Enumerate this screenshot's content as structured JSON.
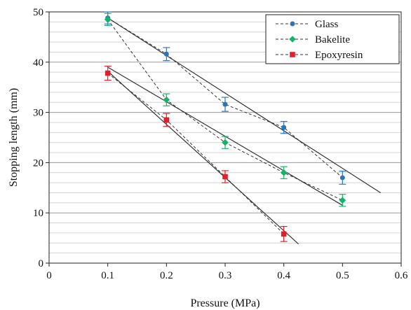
{
  "chart_data": {
    "type": "scatter",
    "title": "",
    "xlabel": "Pressure (MPa)",
    "ylabel": "Stopping length (mm)",
    "xlim": [
      0,
      0.6
    ],
    "ylim": [
      0,
      50
    ],
    "x_ticks": [
      "0",
      "0.1",
      "0.2",
      "0.3",
      "0.4",
      "0.5",
      "0.6"
    ],
    "y_ticks": [
      "0",
      "10",
      "20",
      "30",
      "40",
      "50"
    ],
    "grid": true,
    "legend_position": "top-right",
    "series": [
      {
        "name": "Glass",
        "color": "#2e75b6",
        "marker": "circle",
        "x": [
          0.1,
          0.2,
          0.3,
          0.4,
          0.5
        ],
        "y": [
          48.8,
          41.6,
          31.6,
          27.0,
          17.0
        ],
        "err": [
          1.2,
          1.3,
          1.4,
          1.2,
          1.3
        ],
        "trend": {
          "x0": 0.1,
          "y0": 48.8,
          "x1": 0.565,
          "y1": 14.0
        }
      },
      {
        "name": "Bakelite",
        "color": "#17b26a",
        "marker": "diamond",
        "x": [
          0.1,
          0.2,
          0.3,
          0.4,
          0.5
        ],
        "y": [
          48.5,
          32.5,
          24.0,
          18.0,
          12.5
        ],
        "err": [
          1.2,
          1.2,
          1.2,
          1.2,
          1.2
        ],
        "trend": {
          "x0": 0.1,
          "y0": 39.0,
          "x1": 0.5,
          "y1": 11.5
        }
      },
      {
        "name": "Epoxyresin",
        "color": "#e0202a",
        "marker": "square",
        "x": [
          0.1,
          0.2,
          0.3,
          0.4
        ],
        "y": [
          37.8,
          28.5,
          17.2,
          5.8
        ],
        "err": [
          1.4,
          1.3,
          1.2,
          1.5
        ],
        "trend": {
          "x0": 0.1,
          "y0": 38.2,
          "x1": 0.425,
          "y1": 3.8
        }
      }
    ]
  }
}
